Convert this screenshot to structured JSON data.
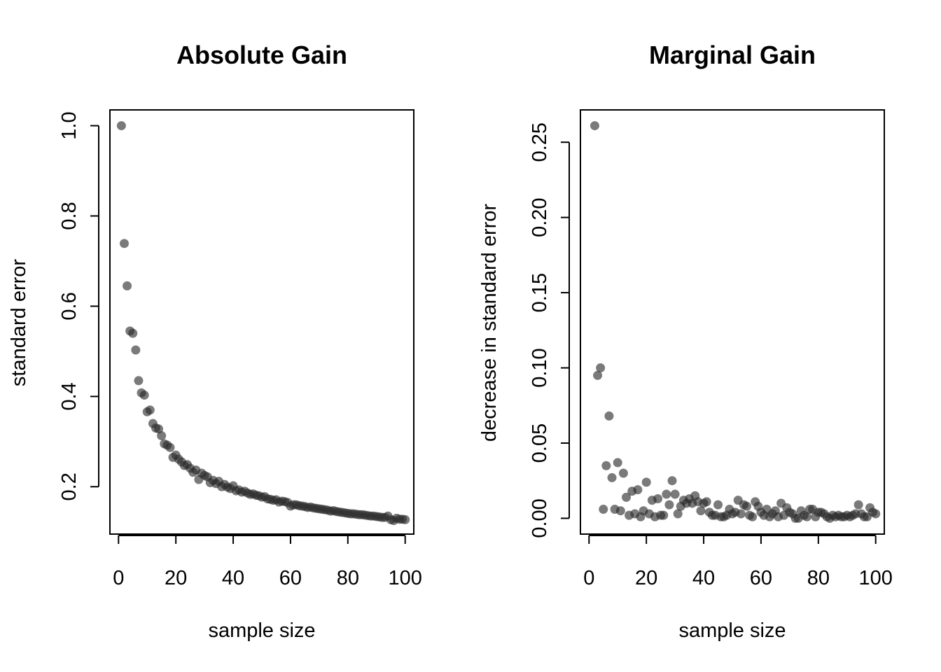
{
  "chart_data": [
    {
      "type": "scatter",
      "title": "Absolute Gain",
      "xlabel": "sample size",
      "ylabel": "standard error",
      "xlim": [
        -3,
        103
      ],
      "ylim": [
        0.095,
        1.035
      ],
      "xticks": [
        0,
        20,
        40,
        60,
        80,
        100
      ],
      "xtick_labels": [
        "0",
        "20",
        "40",
        "60",
        "80",
        "100"
      ],
      "yticks": [
        0.2,
        0.4,
        0.6,
        0.8,
        1.0
      ],
      "ytick_labels": [
        "0.2",
        "0.4",
        "0.6",
        "0.8",
        "1.0"
      ],
      "point_color": "#3a3a3a",
      "grid": false,
      "x": [
        1,
        2,
        3,
        4,
        5,
        6,
        7,
        8,
        9,
        10,
        11,
        12,
        13,
        14,
        15,
        16,
        17,
        18,
        19,
        20,
        21,
        22,
        23,
        24,
        25,
        26,
        27,
        28,
        29,
        30,
        31,
        32,
        33,
        34,
        35,
        36,
        37,
        38,
        39,
        40,
        41,
        42,
        43,
        44,
        45,
        46,
        47,
        48,
        49,
        50,
        51,
        52,
        53,
        54,
        55,
        56,
        57,
        58,
        59,
        60,
        61,
        62,
        63,
        64,
        65,
        66,
        67,
        68,
        69,
        70,
        71,
        72,
        73,
        74,
        75,
        76,
        77,
        78,
        79,
        80,
        81,
        82,
        83,
        84,
        85,
        86,
        87,
        88,
        89,
        90,
        91,
        92,
        93,
        94,
        95,
        96,
        97,
        98,
        99,
        100
      ],
      "y": [
        1.0,
        0.739,
        0.645,
        0.545,
        0.54,
        0.503,
        0.435,
        0.408,
        0.403,
        0.366,
        0.37,
        0.34,
        0.33,
        0.328,
        0.313,
        0.295,
        0.292,
        0.287,
        0.265,
        0.27,
        0.261,
        0.255,
        0.247,
        0.249,
        0.241,
        0.232,
        0.237,
        0.216,
        0.23,
        0.225,
        0.222,
        0.209,
        0.214,
        0.207,
        0.212,
        0.2,
        0.205,
        0.199,
        0.196,
        0.202,
        0.191,
        0.193,
        0.188,
        0.19,
        0.186,
        0.183,
        0.184,
        0.181,
        0.18,
        0.177,
        0.178,
        0.173,
        0.172,
        0.17,
        0.171,
        0.166,
        0.168,
        0.167,
        0.165,
        0.157,
        0.16,
        0.16,
        0.158,
        0.157,
        0.156,
        0.154,
        0.155,
        0.153,
        0.152,
        0.151,
        0.15,
        0.149,
        0.148,
        0.146,
        0.147,
        0.145,
        0.144,
        0.143,
        0.142,
        0.141,
        0.14,
        0.14,
        0.139,
        0.138,
        0.138,
        0.137,
        0.136,
        0.135,
        0.135,
        0.134,
        0.133,
        0.132,
        0.132,
        0.135,
        0.127,
        0.125,
        0.13,
        0.128,
        0.128,
        0.127
      ]
    },
    {
      "type": "scatter",
      "title": "Marginal Gain",
      "xlabel": "sample size",
      "ylabel": "decrease in standard error",
      "xlim": [
        -3,
        103
      ],
      "ylim": [
        -0.0105,
        0.2715
      ],
      "xticks": [
        0,
        20,
        40,
        60,
        80,
        100
      ],
      "xtick_labels": [
        "0",
        "20",
        "40",
        "60",
        "80",
        "100"
      ],
      "yticks": [
        0.0,
        0.05,
        0.1,
        0.15,
        0.2,
        0.25
      ],
      "ytick_labels": [
        "0.00",
        "0.05",
        "0.10",
        "0.15",
        "0.20",
        "0.25"
      ],
      "point_color": "#3a3a3a",
      "grid": false,
      "x": [
        2,
        3,
        4,
        5,
        6,
        7,
        8,
        9,
        10,
        11,
        12,
        13,
        14,
        15,
        16,
        17,
        18,
        19,
        20,
        21,
        22,
        23,
        24,
        25,
        26,
        27,
        28,
        29,
        30,
        31,
        32,
        33,
        34,
        35,
        36,
        37,
        38,
        39,
        40,
        41,
        42,
        43,
        44,
        45,
        46,
        47,
        48,
        49,
        50,
        51,
        52,
        53,
        54,
        55,
        56,
        57,
        58,
        59,
        60,
        61,
        62,
        63,
        64,
        65,
        66,
        67,
        68,
        69,
        70,
        71,
        72,
        73,
        74,
        75,
        76,
        77,
        78,
        79,
        80,
        81,
        82,
        83,
        84,
        85,
        86,
        87,
        88,
        89,
        90,
        91,
        92,
        93,
        94,
        95,
        96,
        97,
        98,
        99,
        100
      ],
      "y": [
        0.261,
        0.095,
        0.1,
        0.006,
        0.035,
        0.068,
        0.027,
        0.006,
        0.037,
        0.005,
        0.03,
        0.014,
        0.002,
        0.018,
        0.003,
        0.019,
        0.001,
        0.005,
        0.024,
        0.003,
        0.012,
        0.001,
        0.013,
        0.002,
        0.002,
        0.016,
        0.009,
        0.025,
        0.016,
        0.003,
        0.008,
        0.012,
        0.01,
        0.013,
        0.01,
        0.015,
        0.011,
        0.005,
        0.01,
        0.011,
        0.004,
        0.002,
        0.002,
        0.009,
        0.001,
        0.001,
        0.002,
        0.006,
        0.003,
        0.004,
        0.012,
        0.003,
        0.009,
        0.008,
        0.002,
        0.001,
        0.011,
        0.008,
        0.004,
        0.002,
        0.006,
        0.001,
        0.003,
        0.005,
        0.001,
        0.01,
        0.002,
        0.007,
        0.004,
        0.003,
        0.0,
        0.0,
        0.005,
        0.002,
        0.001,
        0.006,
        0.006,
        0.001,
        0.004,
        0.004,
        0.003,
        0.001,
        0.0,
        0.002,
        0.001,
        0.002,
        0.001,
        0.001,
        0.002,
        0.001,
        0.002,
        0.003,
        0.009,
        0.003,
        0.001,
        0.001,
        0.007,
        0.004,
        0.003
      ]
    }
  ]
}
